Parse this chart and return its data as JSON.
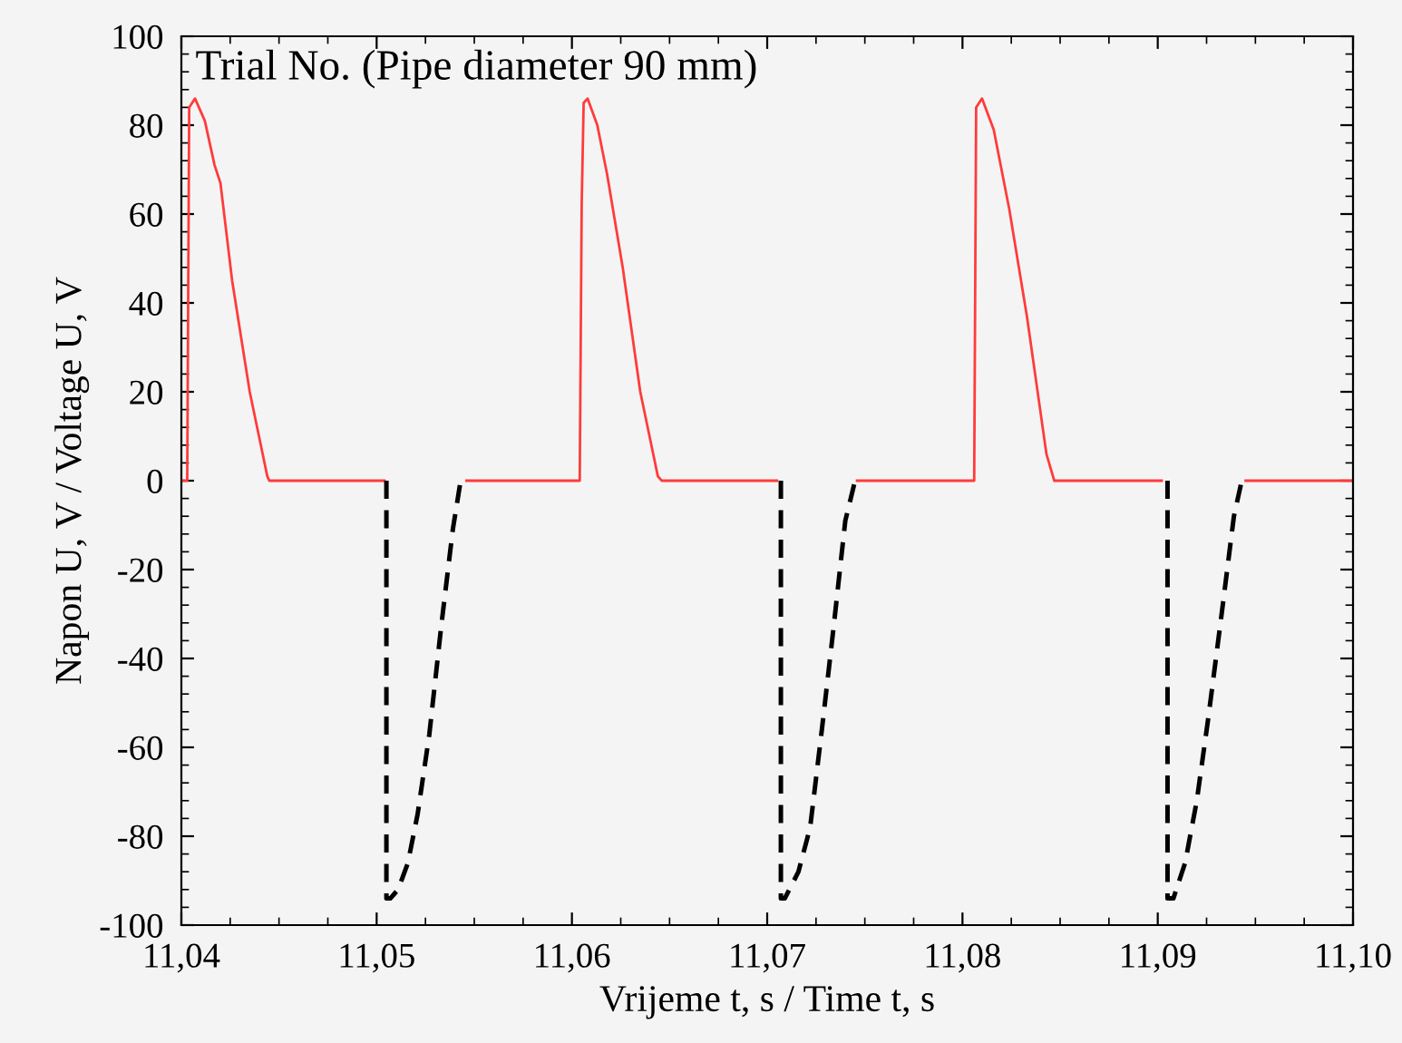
{
  "chart_data": {
    "type": "line",
    "xlabel": "Vrijeme t, s / Time t, s",
    "ylabel": "Napon U, V / Voltage U, V",
    "annotations": [
      "Trial No. (Pipe diameter 90 mm)"
    ],
    "xlim": [
      11.04,
      11.1
    ],
    "xticks": [
      {
        "value": 11.04,
        "label": "11,04"
      },
      {
        "value": 11.05,
        "label": "11,05"
      },
      {
        "value": 11.06,
        "label": "11,06"
      },
      {
        "value": 11.07,
        "label": "11,07"
      },
      {
        "value": 11.08,
        "label": "11,08"
      },
      {
        "value": 11.09,
        "label": "11,09"
      },
      {
        "value": 11.1,
        "label": "11,10"
      }
    ],
    "ylim": [
      -100,
      100
    ],
    "yticks": [
      -100,
      -80,
      -60,
      -40,
      -20,
      0,
      20,
      40,
      60,
      80,
      100
    ],
    "grid": false,
    "series": [
      {
        "color": "#ff3b3b",
        "line_style": "solid",
        "x": [
          11.04,
          11.0403,
          11.0404,
          11.0407,
          11.0412,
          11.0417,
          11.042,
          11.0426,
          11.0435,
          11.0444,
          11.0445,
          11.0504,
          11.0505,
          11.0546,
          11.0604,
          11.0605,
          11.0606,
          11.0608,
          11.0613,
          11.0618,
          11.0626,
          11.0635,
          11.0644,
          11.0646,
          11.0705,
          11.0706,
          11.0746,
          11.0806,
          11.0807,
          11.081,
          11.0816,
          11.0824,
          11.0833,
          11.0843,
          11.0847,
          11.0902,
          11.0903,
          11.0945,
          11.1
        ],
        "values": [
          0,
          0,
          84,
          86,
          81,
          71,
          67,
          45,
          20,
          1,
          0,
          0,
          null,
          0,
          0,
          62,
          85,
          86,
          80,
          69,
          48,
          20,
          1,
          0,
          0,
          null,
          0,
          0,
          84,
          86,
          79,
          61,
          37,
          6,
          0,
          0,
          null,
          0,
          0
        ]
      },
      {
        "color": "#000000",
        "line_style": "dashed",
        "x": [
          11.0505,
          11.0505,
          11.0507,
          11.0511,
          11.0516,
          11.0521,
          11.0527,
          11.0533,
          11.0539,
          11.0543,
          11.06,
          11.0707,
          11.0707,
          11.0709,
          11.0716,
          11.0722,
          11.0728,
          11.0734,
          11.074,
          11.0745,
          11.08,
          11.0905,
          11.0905,
          11.0908,
          11.0914,
          11.092,
          11.0926,
          11.0933,
          11.0939,
          11.0943
        ],
        "values": [
          0,
          -94,
          -94,
          -92,
          -86,
          -75,
          -57,
          -33,
          -11,
          0,
          null,
          0,
          -94,
          -94,
          -88,
          -78,
          -56,
          -33,
          -9,
          0,
          null,
          0,
          -94,
          -94,
          -86,
          -72,
          -53,
          -29,
          -8,
          0
        ]
      }
    ]
  }
}
